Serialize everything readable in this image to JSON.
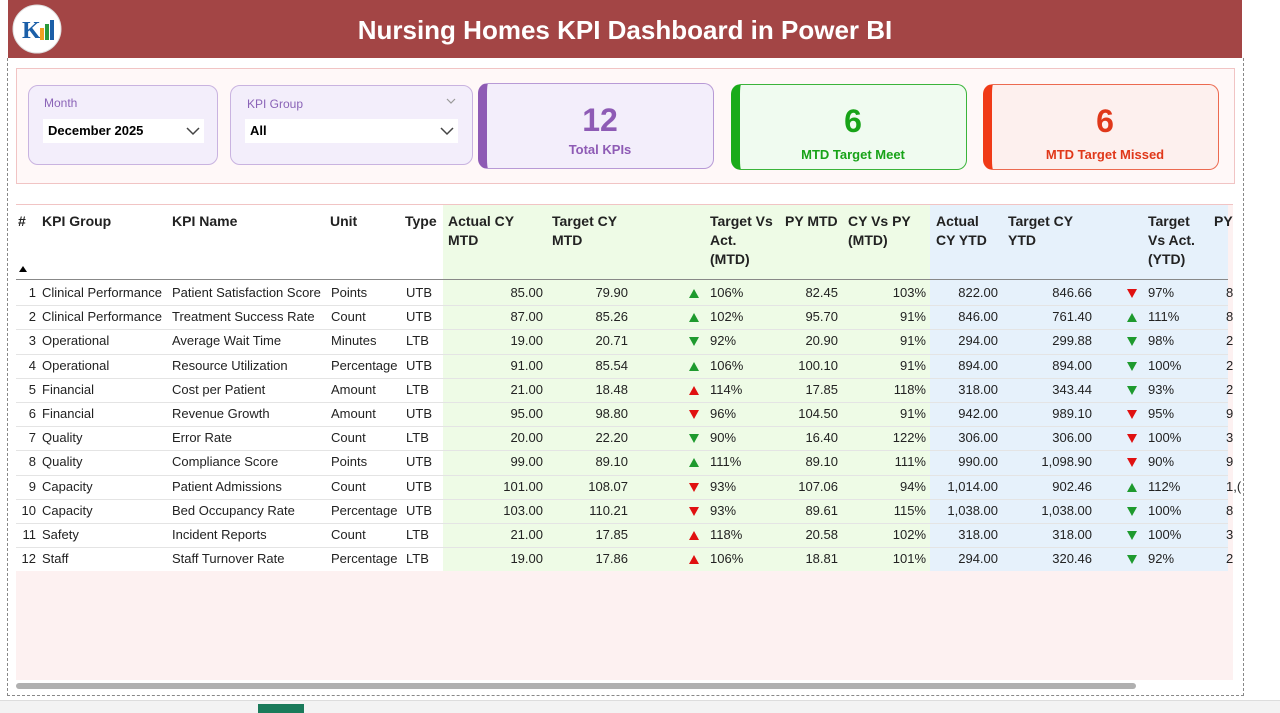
{
  "header": {
    "title": "Nursing Homes KPI Dashboard in Power BI"
  },
  "filters": [
    {
      "label": "Month",
      "value": "December 2025"
    },
    {
      "label": "KPI Group",
      "value": "All"
    }
  ],
  "cards": [
    {
      "value": 12,
      "label": "Total KPIs"
    },
    {
      "value": 6,
      "label": "MTD Target Meet"
    },
    {
      "value": 6,
      "label": "MTD Target Missed"
    }
  ],
  "table": {
    "columns": [
      "#",
      "KPI Group",
      "KPI Name",
      "Unit",
      "Type",
      "Actual CY MTD",
      "Target CY MTD",
      "Target Vs Act. (MTD)",
      "PY MTD",
      "CY Vs PY (MTD)",
      "Actual CY YTD",
      "Target CY YTD",
      "Target Vs Act. (YTD)",
      "PY"
    ],
    "rows": [
      [
        "1",
        "Clinical Performance",
        "Patient Satisfaction Score",
        "Points",
        "UTB",
        "85.00",
        "79.90",
        "106%",
        "82.45",
        "103%",
        "822.00",
        "846.66",
        "97%",
        "8"
      ],
      [
        "2",
        "Clinical Performance",
        "Treatment Success Rate",
        "Count",
        "UTB",
        "87.00",
        "85.26",
        "102%",
        "95.70",
        "91%",
        "846.00",
        "761.40",
        "111%",
        "8"
      ],
      [
        "3",
        "Operational",
        "Average Wait Time",
        "Minutes",
        "LTB",
        "19.00",
        "20.71",
        "92%",
        "20.90",
        "91%",
        "294.00",
        "299.88",
        "98%",
        "2"
      ],
      [
        "4",
        "Operational",
        "Resource Utilization",
        "Percentage",
        "UTB",
        "91.00",
        "85.54",
        "106%",
        "100.10",
        "91%",
        "894.00",
        "894.00",
        "100%",
        "2"
      ],
      [
        "5",
        "Financial",
        "Cost per Patient",
        "Amount",
        "LTB",
        "21.00",
        "18.48",
        "114%",
        "17.85",
        "118%",
        "318.00",
        "343.44",
        "93%",
        "2"
      ],
      [
        "6",
        "Financial",
        "Revenue Growth",
        "Amount",
        "UTB",
        "95.00",
        "98.80",
        "96%",
        "104.50",
        "91%",
        "942.00",
        "989.10",
        "95%",
        "9"
      ],
      [
        "7",
        "Quality",
        "Error Rate",
        "Count",
        "LTB",
        "20.00",
        "22.20",
        "90%",
        "16.40",
        "122%",
        "306.00",
        "306.00",
        "100%",
        "3"
      ],
      [
        "8",
        "Quality",
        "Compliance Score",
        "Points",
        "UTB",
        "99.00",
        "89.10",
        "111%",
        "89.10",
        "111%",
        "990.00",
        "1,098.90",
        "90%",
        "9"
      ],
      [
        "9",
        "Capacity",
        "Patient Admissions",
        "Count",
        "UTB",
        "101.00",
        "108.07",
        "93%",
        "107.06",
        "94%",
        "1,014.00",
        "902.46",
        "112%",
        "1,("
      ],
      [
        "10",
        "Capacity",
        "Bed Occupancy Rate",
        "Percentage",
        "UTB",
        "103.00",
        "110.21",
        "93%",
        "89.61",
        "115%",
        "1,038.00",
        "1,038.00",
        "100%",
        "8"
      ],
      [
        "11",
        "Safety",
        "Incident Reports",
        "Count",
        "LTB",
        "21.00",
        "17.85",
        "118%",
        "20.58",
        "102%",
        "318.00",
        "318.00",
        "100%",
        "3"
      ],
      [
        "12",
        "Staff",
        "Staff Turnover Rate",
        "Percentage",
        "LTB",
        "19.00",
        "17.86",
        "106%",
        "18.81",
        "101%",
        "294.00",
        "320.46",
        "92%",
        "2"
      ]
    ]
  }
}
